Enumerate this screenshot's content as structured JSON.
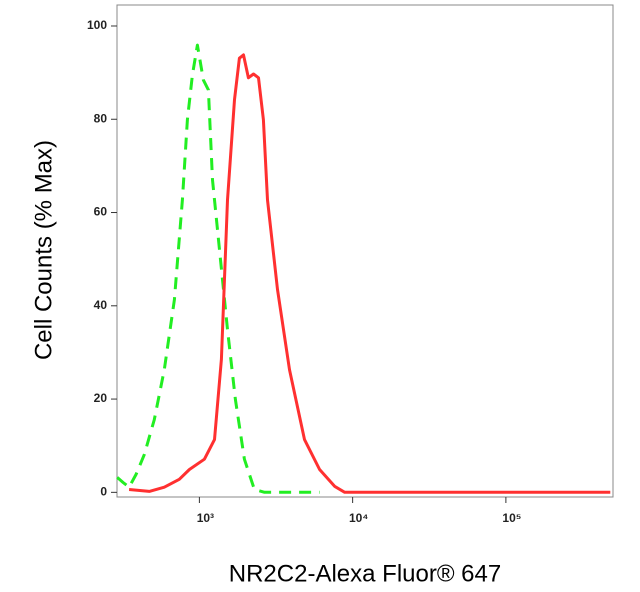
{
  "chart_data": {
    "type": "line",
    "x_label": "NR2C2-Alexa Fluor® 647",
    "y_label": "Cell Counts (% Max)",
    "x_scale": "log",
    "xlim": [
      290,
      500000
    ],
    "xticks": [
      {
        "value": 1000,
        "label": "10³"
      },
      {
        "value": 10000,
        "label": "10⁴"
      },
      {
        "value": 100000,
        "label": "10⁵"
      }
    ],
    "ylim": [
      -1,
      104.5
    ],
    "yticks": [
      0,
      20,
      40,
      60,
      80,
      100
    ],
    "series": [
      {
        "color": "#22ee22",
        "style": "dashed",
        "x": [
          291,
          318,
          348,
          387,
          437,
          508,
          590,
          687,
          775,
          835,
          900,
          970,
          1062,
          1145,
          1217,
          1352,
          1525,
          1718,
          1967,
          2287,
          2659,
          6085
        ],
        "values": [
          3.2,
          2.1,
          1.1,
          3.9,
          8.1,
          15.6,
          26.3,
          41.3,
          62.7,
          79.9,
          89.5,
          95.9,
          88.4,
          86.3,
          67.0,
          52.0,
          34.9,
          19.9,
          7.1,
          0.6,
          0,
          0
        ]
      },
      {
        "color": "#ff3030",
        "style": "solid",
        "x": [
          348,
          471,
          590,
          740,
          861,
          1079,
          1254,
          1393,
          1525,
          1694,
          1825,
          1940,
          2090,
          2254,
          2430,
          2618,
          2781,
          3234,
          3875,
          4853,
          6085,
          7621,
          8870,
          480000
        ],
        "values": [
          0.6,
          0.2,
          1.1,
          2.8,
          4.9,
          7.1,
          11.3,
          28.5,
          62.7,
          84.2,
          93.1,
          93.8,
          88.9,
          89.7,
          88.9,
          79.9,
          62.7,
          43.5,
          26.3,
          11.3,
          4.9,
          1.3,
          0,
          0
        ]
      }
    ]
  }
}
